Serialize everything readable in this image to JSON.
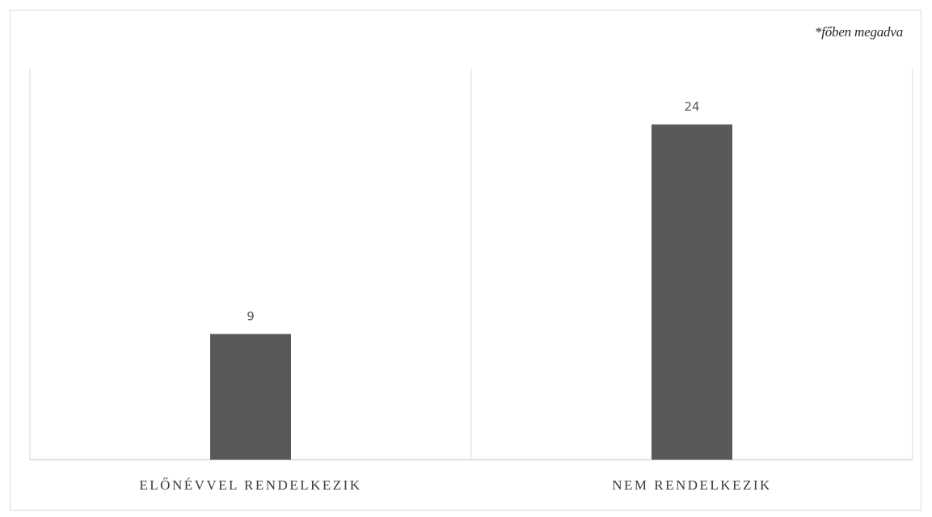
{
  "footnote": "*főben megadva",
  "colors": {
    "bar": "#595959",
    "axis": "#bfbfbf",
    "gridline": "#d9d9d9",
    "border": "#d9d9d9"
  },
  "chart_data": {
    "type": "bar",
    "categories": [
      "ELŐNÉVVEL RENDELKEZIK",
      "NEM RENDELKEZIK"
    ],
    "values": [
      9,
      24
    ],
    "data_labels": [
      "9",
      "24"
    ],
    "title": "",
    "xlabel": "",
    "ylabel": "",
    "ylim": [
      0,
      28
    ],
    "grid": false,
    "category_separators": true,
    "legend": "none"
  }
}
